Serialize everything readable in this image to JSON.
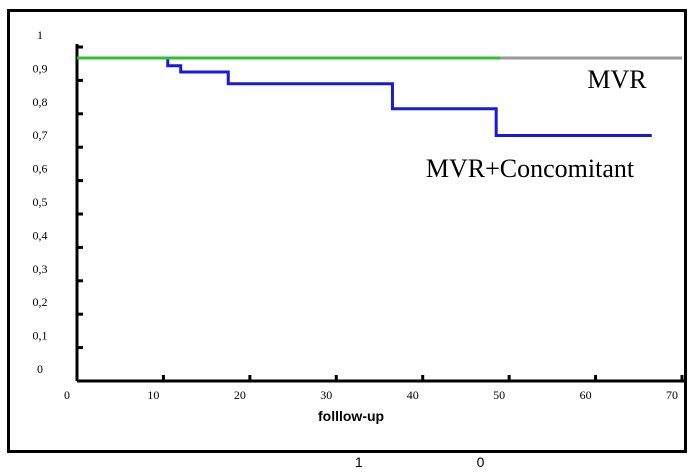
{
  "chart_data": {
    "type": "line",
    "title": "",
    "xlabel": "folllow-up",
    "ylabel": "",
    "xlim": [
      0,
      70
    ],
    "ylim": [
      0,
      1
    ],
    "x_ticks": [
      {
        "value": 0,
        "label": "0"
      },
      {
        "value": 10,
        "label": "10"
      },
      {
        "value": 20,
        "label": "20"
      },
      {
        "value": 30,
        "label": "30"
      },
      {
        "value": 40,
        "label": "40"
      },
      {
        "value": 50,
        "label": "50"
      },
      {
        "value": 60,
        "label": "60"
      },
      {
        "value": 70,
        "label": "70"
      }
    ],
    "y_ticks": [
      {
        "value": 0,
        "label": "0"
      },
      {
        "value": 0.1,
        "label": "0,1"
      },
      {
        "value": 0.2,
        "label": "0,2"
      },
      {
        "value": 0.3,
        "label": "0,3"
      },
      {
        "value": 0.4,
        "label": "0,4"
      },
      {
        "value": 0.5,
        "label": "0,5"
      },
      {
        "value": 0.6,
        "label": "0,6"
      },
      {
        "value": 0.7,
        "label": "0,7"
      },
      {
        "value": 0.8,
        "label": "0,8"
      },
      {
        "value": 0.9,
        "label": "0,9"
      },
      {
        "value": 1,
        "label": "1"
      }
    ],
    "grid": false,
    "series": [
      {
        "name": "MVR",
        "color": "#9a9a9a",
        "step": true,
        "x": [
          0,
          70
        ],
        "y": [
          0.967,
          0.967
        ]
      },
      {
        "name": "MVR+Concomitant",
        "color": "#1a1ad6",
        "step": true,
        "x": [
          0,
          10.5,
          12,
          17.5,
          36.5,
          48.5,
          66.5
        ],
        "y": [
          0.967,
          0.944,
          0.925,
          0.89,
          0.815,
          0.735,
          0.735
        ]
      },
      {
        "name": "",
        "color": "#2fc02f",
        "step": true,
        "x": [
          0,
          49
        ],
        "y": [
          0.967,
          0.967
        ]
      }
    ],
    "annotations": [
      "MVR",
      "MVR+Concomitant"
    ]
  },
  "footer": {
    "text": "1 0"
  }
}
